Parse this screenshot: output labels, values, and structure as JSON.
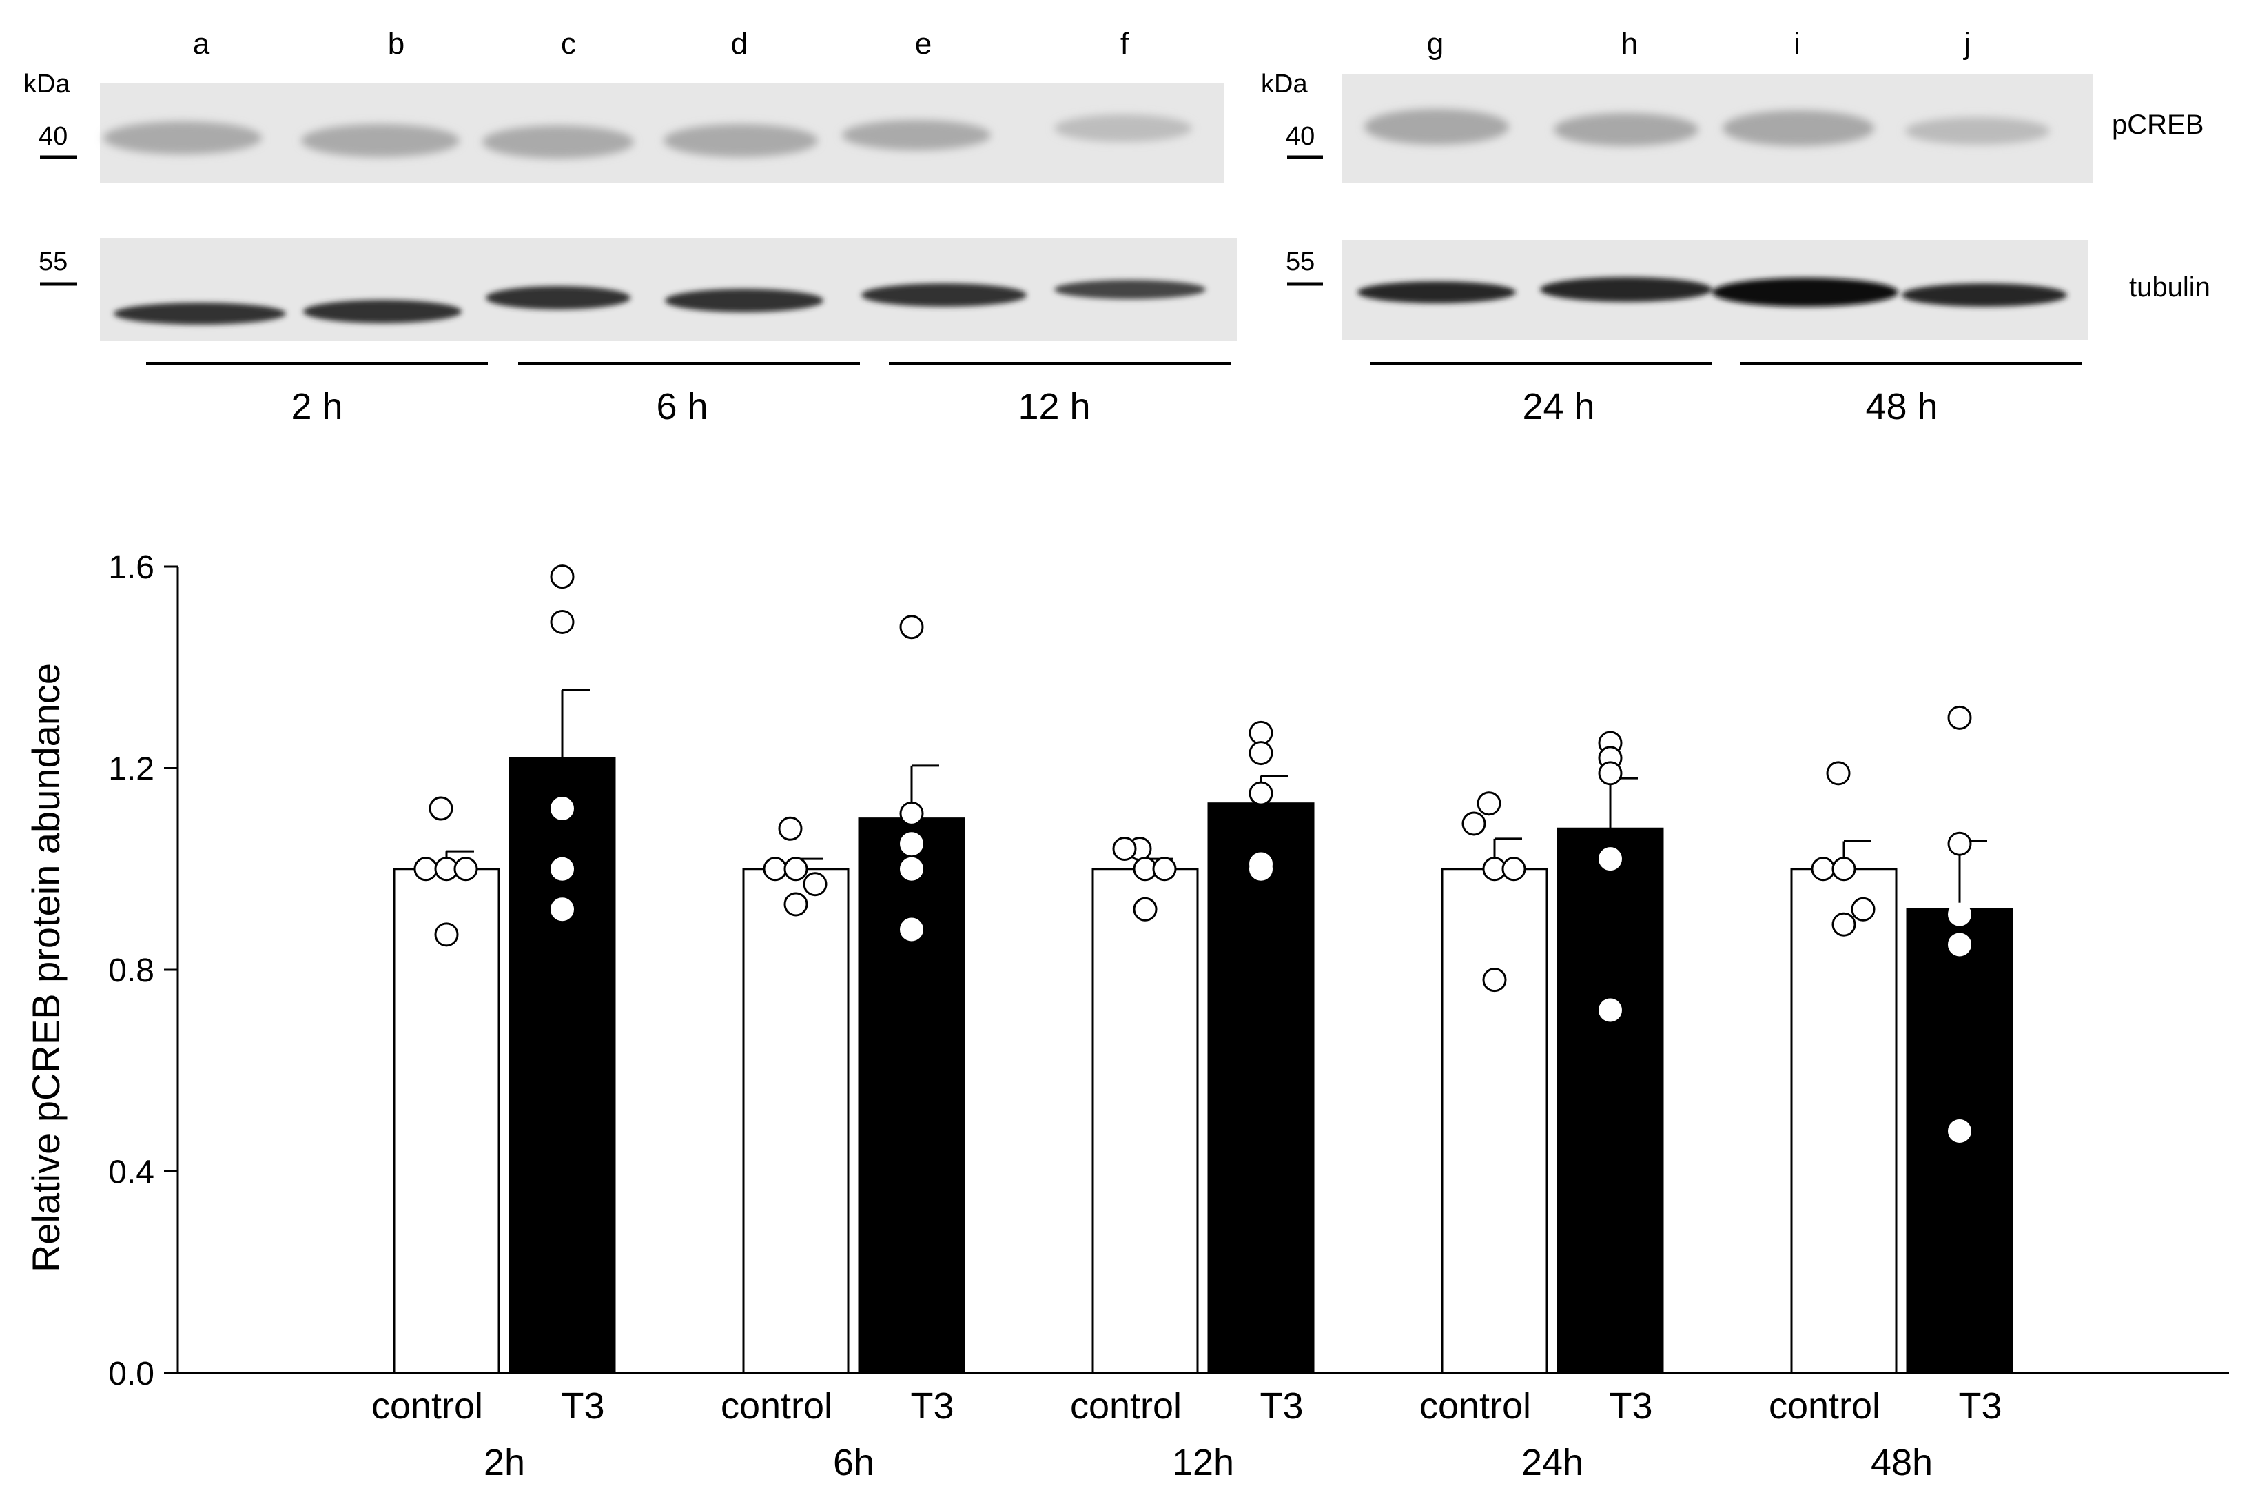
{
  "blot": {
    "left_panel": {
      "kda_label": "kDa",
      "lanes": [
        "a",
        "b",
        "c",
        "d",
        "e",
        "f"
      ],
      "markers": [
        "40",
        "55"
      ],
      "timepoints": [
        "2 h",
        "6 h",
        "12 h"
      ]
    },
    "right_panel": {
      "kda_label": "kDa",
      "lanes": [
        "g",
        "h",
        "i",
        "j"
      ],
      "markers": [
        "40",
        "55"
      ],
      "timepoints": [
        "24 h",
        "48 h"
      ]
    },
    "row_labels": [
      "pCREB",
      "tubulin"
    ]
  },
  "chart_data": {
    "type": "bar",
    "title": "",
    "xlabel": "",
    "ylabel": "Relative pCREB protein abundance",
    "ylim": [
      0,
      1.6
    ],
    "yticks": [
      "0.0",
      "0.4",
      "0.8",
      "1.2",
      "1.6"
    ],
    "grid": false,
    "legend": "none",
    "groups": [
      "2h",
      "6h",
      "12h",
      "24h",
      "48h"
    ],
    "conditions": [
      "control",
      "T3"
    ],
    "bars": [
      {
        "group": "2h",
        "condition": "control",
        "value": 1.0,
        "sem": 0.035,
        "points": [
          1.12,
          1.0,
          1.0,
          1.0,
          0.87
        ]
      },
      {
        "group": "2h",
        "condition": "T3",
        "value": 1.22,
        "sem": 0.135,
        "points": [
          1.58,
          1.49,
          1.12,
          1.0,
          0.92
        ]
      },
      {
        "group": "6h",
        "condition": "control",
        "value": 1.0,
        "sem": 0.02,
        "points": [
          1.08,
          1.0,
          1.0,
          0.97,
          0.93
        ]
      },
      {
        "group": "6h",
        "condition": "T3",
        "value": 1.1,
        "sem": 0.105,
        "points": [
          1.48,
          1.11,
          1.05,
          1.0,
          0.88
        ]
      },
      {
        "group": "12h",
        "condition": "control",
        "value": 1.0,
        "sem": 0.02,
        "points": [
          1.04,
          1.04,
          1.0,
          1.0,
          0.92
        ]
      },
      {
        "group": "12h",
        "condition": "T3",
        "value": 1.13,
        "sem": 0.055,
        "points": [
          1.27,
          1.23,
          1.15,
          1.01,
          1.0
        ]
      },
      {
        "group": "24h",
        "condition": "control",
        "value": 1.0,
        "sem": 0.06,
        "points": [
          1.13,
          1.09,
          1.0,
          1.0,
          0.78
        ]
      },
      {
        "group": "24h",
        "condition": "T3",
        "value": 1.08,
        "sem": 0.1,
        "points": [
          1.25,
          1.22,
          1.19,
          1.02,
          0.72
        ]
      },
      {
        "group": "48h",
        "condition": "control",
        "value": 1.0,
        "sem": 0.055,
        "points": [
          1.19,
          1.0,
          1.0,
          0.92,
          0.89
        ]
      },
      {
        "group": "48h",
        "condition": "T3",
        "value": 0.92,
        "sem": 0.135,
        "points": [
          1.3,
          1.05,
          0.91,
          0.85,
          0.48
        ]
      }
    ],
    "colors": {
      "control": "#ffffff",
      "T3": "#000000",
      "outline": "#000000"
    }
  }
}
